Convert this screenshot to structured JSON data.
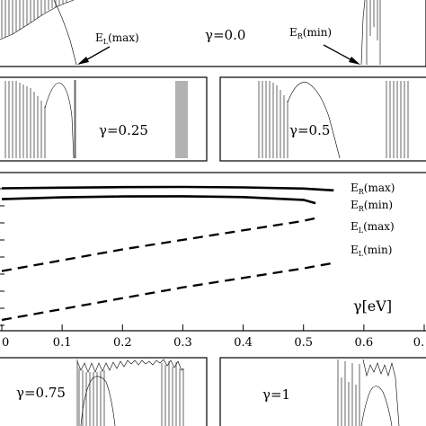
{
  "chart_data": [
    {
      "type": "line",
      "panel": "top",
      "annotations": [
        {
          "text": "γ=0.0"
        },
        {
          "text": "E",
          "sub": "L",
          "suffix": "(max)"
        },
        {
          "text": "E",
          "sub": "R",
          "suffix": "(min)"
        }
      ]
    },
    {
      "type": "line",
      "panel": "middle-left",
      "annotations": [
        {
          "text": "γ=0.25"
        }
      ]
    },
    {
      "type": "line",
      "panel": "middle-right",
      "annotations": [
        {
          "text": "γ=0.5"
        }
      ]
    },
    {
      "type": "line",
      "panel": "main",
      "xlabel": "γ[eV]",
      "xlim": [
        0,
        0.7
      ],
      "x_ticks": [
        {
          "v": 0,
          "label": "0"
        },
        {
          "v": 0.1,
          "label": "0.1"
        },
        {
          "v": 0.2,
          "label": "0.2"
        },
        {
          "v": 0.3,
          "label": "0.3"
        },
        {
          "v": 0.4,
          "label": "0.4"
        },
        {
          "v": 0.5,
          "label": "0.5"
        },
        {
          "v": 0.6,
          "label": "0.6"
        },
        {
          "v": 0.7,
          "label": "0."
        }
      ],
      "ylim": [
        0,
        1
      ],
      "series": [
        {
          "name": "E_R(max)",
          "style": "solid",
          "x": [
            0,
            0.1,
            0.2,
            0.3,
            0.4,
            0.5,
            0.55
          ],
          "y": [
            0.97,
            0.975,
            0.979,
            0.98,
            0.977,
            0.968,
            0.955
          ]
        },
        {
          "name": "E_R(min)",
          "style": "solid",
          "x": [
            0,
            0.1,
            0.2,
            0.3,
            0.4,
            0.5,
            0.52
          ],
          "y": [
            0.89,
            0.903,
            0.91,
            0.911,
            0.905,
            0.885,
            0.86
          ]
        },
        {
          "name": "E_L(max)",
          "style": "dashed",
          "x": [
            0,
            0.1,
            0.2,
            0.3,
            0.4,
            0.5,
            0.52
          ],
          "y": [
            0.36,
            0.44,
            0.52,
            0.59,
            0.66,
            0.73,
            0.75
          ]
        },
        {
          "name": "E_L(min)",
          "style": "dashed",
          "x": [
            0,
            0.1,
            0.2,
            0.3,
            0.4,
            0.5,
            0.55
          ],
          "y": [
            0.0,
            0.08,
            0.16,
            0.24,
            0.31,
            0.38,
            0.42
          ]
        }
      ],
      "legend": [
        {
          "main": "E",
          "sub": "R",
          "suffix": "(max)"
        },
        {
          "main": "E",
          "sub": "R",
          "suffix": "(min)"
        },
        {
          "main": "E",
          "sub": "L",
          "suffix": "(max)"
        },
        {
          "main": "E",
          "sub": "L",
          "suffix": "(min)"
        }
      ]
    },
    {
      "type": "line",
      "panel": "bottom-left",
      "annotations": [
        {
          "text": "γ=0.75"
        }
      ]
    },
    {
      "type": "line",
      "panel": "bottom-right",
      "annotations": [
        {
          "text": "γ=1"
        }
      ]
    }
  ]
}
